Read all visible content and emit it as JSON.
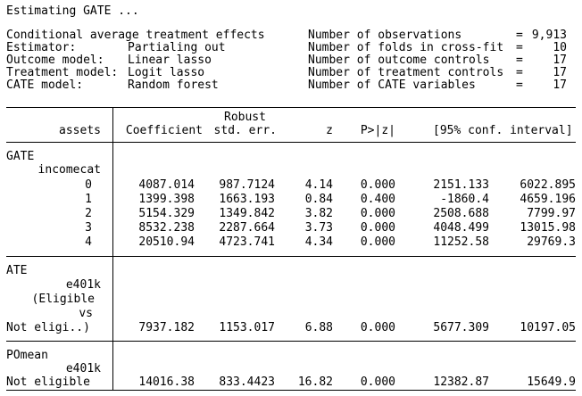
{
  "title": "Estimating GATE ...",
  "summary": {
    "left": [
      {
        "label": "Conditional average treatment effects",
        "value": ""
      },
      {
        "label": "Estimator:",
        "value": "Partialing out"
      },
      {
        "label": "Outcome model:",
        "value": "Linear lasso"
      },
      {
        "label": "Treatment model:",
        "value": "Logit lasso"
      },
      {
        "label": "CATE model:",
        "value": "Random forest"
      }
    ],
    "right": [
      {
        "label": "Number of observations",
        "eq": "=",
        "value": "9,913"
      },
      {
        "label": "Number of folds in cross-fit",
        "eq": "=",
        "value": "10"
      },
      {
        "label": "Number of outcome controls",
        "eq": "=",
        "value": "17"
      },
      {
        "label": "Number of treatment controls",
        "eq": "=",
        "value": "17"
      },
      {
        "label": "Number of CATE variables",
        "eq": "=",
        "value": "17"
      }
    ]
  },
  "table": {
    "header": {
      "rowvar": "assets",
      "coef": "Coefficient",
      "robust": "Robust",
      "se": "std. err.",
      "z": "z",
      "p": "P>|z|",
      "ci": "[95% conf. interval]"
    },
    "gate": {
      "section": "GATE",
      "var": "incomecat",
      "rows": [
        {
          "label": "0",
          "coef": "4087.014",
          "se": "987.7124",
          "z": "4.14",
          "p": "0.000",
          "lo": "2151.133",
          "hi": "6022.895"
        },
        {
          "label": "1",
          "coef": "1399.398",
          "se": "1663.193",
          "z": "0.84",
          "p": "0.400",
          "lo": "-1860.4",
          "hi": "4659.196"
        },
        {
          "label": "2",
          "coef": "5154.329",
          "se": "1349.842",
          "z": "3.82",
          "p": "0.000",
          "lo": "2508.688",
          "hi": "7799.97"
        },
        {
          "label": "3",
          "coef": "8532.238",
          "se": "2287.664",
          "z": "3.73",
          "p": "0.000",
          "lo": "4048.499",
          "hi": "13015.98"
        },
        {
          "label": "4",
          "coef": "20510.94",
          "se": "4723.741",
          "z": "4.34",
          "p": "0.000",
          "lo": "11252.58",
          "hi": "29769.3"
        }
      ]
    },
    "ate": {
      "section": "ATE",
      "var": "e401k",
      "label_lines": [
        "(Eligible",
        "vs"
      ],
      "row": {
        "label": "Not eligi..)",
        "coef": "7937.182",
        "se": "1153.017",
        "z": "6.88",
        "p": "0.000",
        "lo": "5677.309",
        "hi": "10197.05"
      }
    },
    "pomean": {
      "section": "POmean",
      "var": "e401k",
      "row": {
        "label": "Not eligible",
        "coef": "14016.38",
        "se": "833.4423",
        "z": "16.82",
        "p": "0.000",
        "lo": "12382.87",
        "hi": "15649.9"
      }
    }
  }
}
